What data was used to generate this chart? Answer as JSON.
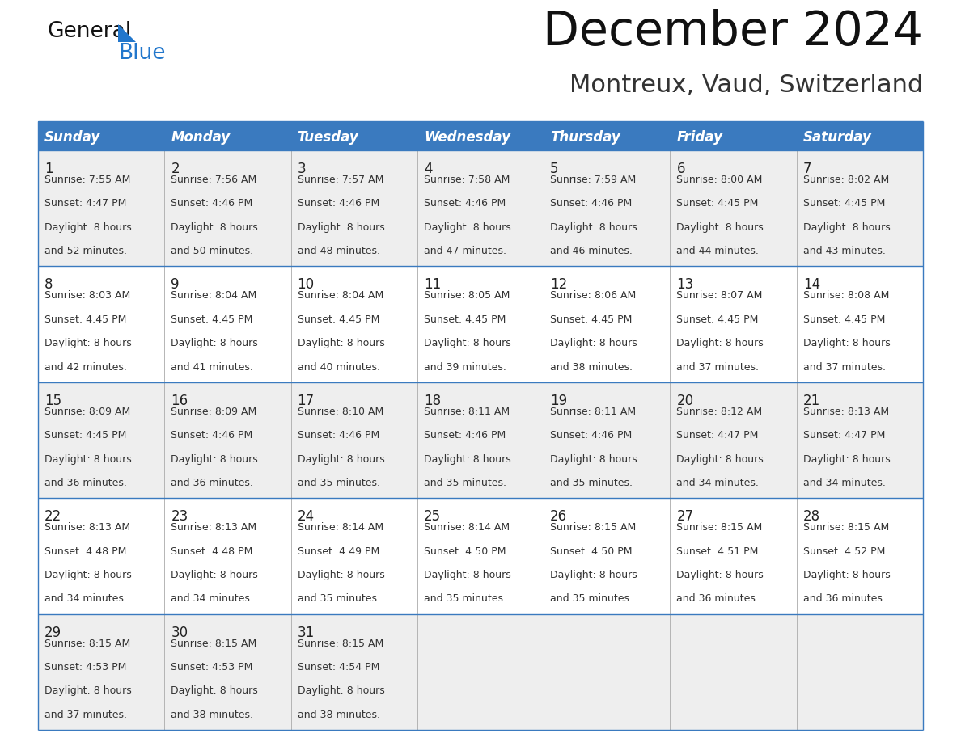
{
  "title": "December 2024",
  "subtitle": "Montreux, Vaud, Switzerland",
  "days_of_week": [
    "Sunday",
    "Monday",
    "Tuesday",
    "Wednesday",
    "Thursday",
    "Friday",
    "Saturday"
  ],
  "header_bg": "#3a7abf",
  "header_text": "#ffffff",
  "row_bg_odd": "#eeeeee",
  "row_bg_even": "#ffffff",
  "cell_text_color": "#333333",
  "day_num_color": "#222222",
  "border_color": "#3a7abf",
  "grid_color": "#aaaaaa",
  "title_color": "#111111",
  "subtitle_color": "#333333",
  "logo_text_color": "#111111",
  "logo_blue_color": "#2277cc",
  "calendar_data": [
    [
      {
        "day": 1,
        "sunrise": "7:55 AM",
        "sunset": "4:47 PM",
        "daylight": "8 hours and 52 minutes."
      },
      {
        "day": 2,
        "sunrise": "7:56 AM",
        "sunset": "4:46 PM",
        "daylight": "8 hours and 50 minutes."
      },
      {
        "day": 3,
        "sunrise": "7:57 AM",
        "sunset": "4:46 PM",
        "daylight": "8 hours and 48 minutes."
      },
      {
        "day": 4,
        "sunrise": "7:58 AM",
        "sunset": "4:46 PM",
        "daylight": "8 hours and 47 minutes."
      },
      {
        "day": 5,
        "sunrise": "7:59 AM",
        "sunset": "4:46 PM",
        "daylight": "8 hours and 46 minutes."
      },
      {
        "day": 6,
        "sunrise": "8:00 AM",
        "sunset": "4:45 PM",
        "daylight": "8 hours and 44 minutes."
      },
      {
        "day": 7,
        "sunrise": "8:02 AM",
        "sunset": "4:45 PM",
        "daylight": "8 hours and 43 minutes."
      }
    ],
    [
      {
        "day": 8,
        "sunrise": "8:03 AM",
        "sunset": "4:45 PM",
        "daylight": "8 hours and 42 minutes."
      },
      {
        "day": 9,
        "sunrise": "8:04 AM",
        "sunset": "4:45 PM",
        "daylight": "8 hours and 41 minutes."
      },
      {
        "day": 10,
        "sunrise": "8:04 AM",
        "sunset": "4:45 PM",
        "daylight": "8 hours and 40 minutes."
      },
      {
        "day": 11,
        "sunrise": "8:05 AM",
        "sunset": "4:45 PM",
        "daylight": "8 hours and 39 minutes."
      },
      {
        "day": 12,
        "sunrise": "8:06 AM",
        "sunset": "4:45 PM",
        "daylight": "8 hours and 38 minutes."
      },
      {
        "day": 13,
        "sunrise": "8:07 AM",
        "sunset": "4:45 PM",
        "daylight": "8 hours and 37 minutes."
      },
      {
        "day": 14,
        "sunrise": "8:08 AM",
        "sunset": "4:45 PM",
        "daylight": "8 hours and 37 minutes."
      }
    ],
    [
      {
        "day": 15,
        "sunrise": "8:09 AM",
        "sunset": "4:45 PM",
        "daylight": "8 hours and 36 minutes."
      },
      {
        "day": 16,
        "sunrise": "8:09 AM",
        "sunset": "4:46 PM",
        "daylight": "8 hours and 36 minutes."
      },
      {
        "day": 17,
        "sunrise": "8:10 AM",
        "sunset": "4:46 PM",
        "daylight": "8 hours and 35 minutes."
      },
      {
        "day": 18,
        "sunrise": "8:11 AM",
        "sunset": "4:46 PM",
        "daylight": "8 hours and 35 minutes."
      },
      {
        "day": 19,
        "sunrise": "8:11 AM",
        "sunset": "4:46 PM",
        "daylight": "8 hours and 35 minutes."
      },
      {
        "day": 20,
        "sunrise": "8:12 AM",
        "sunset": "4:47 PM",
        "daylight": "8 hours and 34 minutes."
      },
      {
        "day": 21,
        "sunrise": "8:13 AM",
        "sunset": "4:47 PM",
        "daylight": "8 hours and 34 minutes."
      }
    ],
    [
      {
        "day": 22,
        "sunrise": "8:13 AM",
        "sunset": "4:48 PM",
        "daylight": "8 hours and 34 minutes."
      },
      {
        "day": 23,
        "sunrise": "8:13 AM",
        "sunset": "4:48 PM",
        "daylight": "8 hours and 34 minutes."
      },
      {
        "day": 24,
        "sunrise": "8:14 AM",
        "sunset": "4:49 PM",
        "daylight": "8 hours and 35 minutes."
      },
      {
        "day": 25,
        "sunrise": "8:14 AM",
        "sunset": "4:50 PM",
        "daylight": "8 hours and 35 minutes."
      },
      {
        "day": 26,
        "sunrise": "8:15 AM",
        "sunset": "4:50 PM",
        "daylight": "8 hours and 35 minutes."
      },
      {
        "day": 27,
        "sunrise": "8:15 AM",
        "sunset": "4:51 PM",
        "daylight": "8 hours and 36 minutes."
      },
      {
        "day": 28,
        "sunrise": "8:15 AM",
        "sunset": "4:52 PM",
        "daylight": "8 hours and 36 minutes."
      }
    ],
    [
      {
        "day": 29,
        "sunrise": "8:15 AM",
        "sunset": "4:53 PM",
        "daylight": "8 hours and 37 minutes."
      },
      {
        "day": 30,
        "sunrise": "8:15 AM",
        "sunset": "4:53 PM",
        "daylight": "8 hours and 38 minutes."
      },
      {
        "day": 31,
        "sunrise": "8:15 AM",
        "sunset": "4:54 PM",
        "daylight": "8 hours and 38 minutes."
      },
      null,
      null,
      null,
      null
    ]
  ],
  "fig_width": 11.88,
  "fig_height": 9.18,
  "dpi": 100
}
